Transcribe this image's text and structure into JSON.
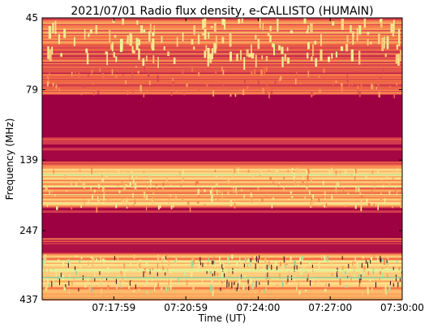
{
  "chart_data": {
    "type": "heatmap",
    "title": "2021/07/01  Radio flux density, e-CALLISTO (HUMAIN)",
    "xlabel": "Time (UT)",
    "ylabel": "Frequency (MHz)",
    "x_range": [
      "07:15:00",
      "07:30:00"
    ],
    "x_ticks": [
      "07:17:59",
      "07:20:59",
      "07:24:00",
      "07:27:00",
      "07:30:00"
    ],
    "y_ticks": [
      "45",
      "79",
      "139",
      "247",
      "437"
    ],
    "colormap": "Spectral_r",
    "colors": {
      "low": "#9e0142",
      "mid_low": "#e4514b",
      "mid": "#fdae61",
      "high": "#fee08b",
      "very_high": "#e6f598",
      "peak": "#66c2a5"
    },
    "frequency_bands": [
      {
        "label": "45-60 MHz",
        "level": "mixed bursts"
      },
      {
        "label": "79-135 MHz",
        "level": "low (saturated background)"
      },
      {
        "label": "145-180 MHz",
        "level": "high"
      },
      {
        "label": "190-250 MHz",
        "level": "low"
      },
      {
        "label": "300-437 MHz",
        "level": "high"
      }
    ]
  }
}
